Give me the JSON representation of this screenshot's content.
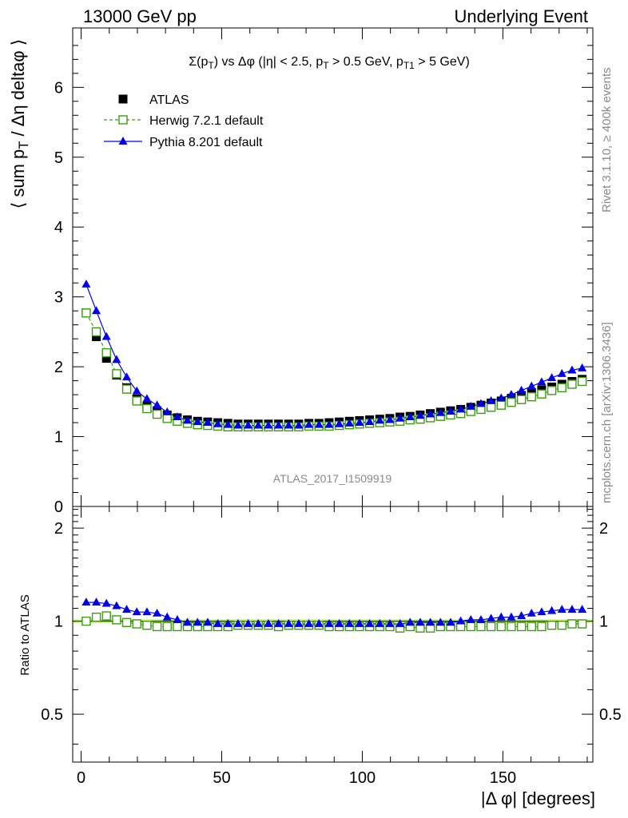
{
  "header": {
    "left": "13000 GeV pp",
    "right": "Underlying Event"
  },
  "watermarks": {
    "rivet": "Rivet 3.1.10, ≥ 400k events",
    "mcplots": "mcplots.cern.ch [arXiv:1306.3436]",
    "analysis": "ATLAS_2017_I1509919"
  },
  "colors": {
    "atlas": "#000000",
    "herwig": "#3c9c14",
    "pythia": "#0000ee",
    "band": "#ccff66"
  },
  "chart_data": [
    {
      "type": "scatter",
      "panel": "main",
      "title": "Σ(p_T) vs Δφ (|η| < 2.5, p_T > 0.5 GeV, p_T1 > 5 GeV)",
      "ylabel": "⟨ sum p_T / Δη deltaφ ⟩",
      "xlabel": "",
      "xlim": [
        -3,
        182
      ],
      "ylim": [
        0,
        6.85
      ],
      "yticks": [
        1,
        2,
        3,
        4,
        5,
        6
      ],
      "ytick_labels": [
        "1",
        "2",
        "3",
        "4",
        "5",
        "6"
      ],
      "y_bottom_label": "0",
      "legend": {
        "position": "top-left",
        "entries": [
          "ATLAS",
          "Herwig 7.2.1 default",
          "Pythia 8.201 default"
        ]
      },
      "x": [
        1.8,
        5.4,
        9.0,
        12.6,
        16.2,
        19.8,
        23.4,
        27.0,
        30.6,
        34.2,
        37.8,
        41.4,
        45.0,
        48.6,
        52.2,
        55.8,
        59.4,
        63.0,
        66.6,
        70.2,
        73.8,
        77.4,
        81.0,
        84.6,
        88.2,
        91.8,
        95.4,
        99.0,
        102.6,
        106.2,
        109.8,
        113.4,
        117.0,
        120.6,
        124.2,
        127.8,
        131.4,
        135.0,
        138.6,
        142.2,
        145.8,
        149.4,
        153.0,
        156.6,
        160.2,
        163.8,
        167.4,
        171.0,
        174.6,
        178.2
      ],
      "series": [
        {
          "name": "ATLAS",
          "marker": "filled-square",
          "values": [
            2.77,
            2.43,
            2.12,
            1.88,
            1.7,
            1.54,
            1.44,
            1.37,
            1.31,
            1.27,
            1.24,
            1.22,
            1.21,
            1.2,
            1.19,
            1.18,
            1.18,
            1.18,
            1.18,
            1.18,
            1.18,
            1.18,
            1.19,
            1.19,
            1.2,
            1.21,
            1.22,
            1.23,
            1.24,
            1.25,
            1.26,
            1.28,
            1.29,
            1.31,
            1.33,
            1.35,
            1.37,
            1.39,
            1.42,
            1.45,
            1.48,
            1.51,
            1.55,
            1.59,
            1.63,
            1.67,
            1.71,
            1.75,
            1.79,
            1.82
          ]
        },
        {
          "name": "Herwig 7.2.1 default",
          "marker": "open-square",
          "values": [
            2.77,
            2.5,
            2.2,
            1.9,
            1.68,
            1.51,
            1.4,
            1.32,
            1.26,
            1.22,
            1.19,
            1.17,
            1.16,
            1.15,
            1.14,
            1.14,
            1.14,
            1.14,
            1.14,
            1.14,
            1.14,
            1.14,
            1.15,
            1.15,
            1.15,
            1.16,
            1.17,
            1.18,
            1.19,
            1.2,
            1.21,
            1.22,
            1.24,
            1.25,
            1.27,
            1.29,
            1.31,
            1.33,
            1.36,
            1.39,
            1.42,
            1.45,
            1.49,
            1.53,
            1.57,
            1.61,
            1.66,
            1.7,
            1.75,
            1.79
          ]
        },
        {
          "name": "Pythia 8.201 default",
          "marker": "filled-triangle",
          "values": [
            3.18,
            2.8,
            2.43,
            2.1,
            1.85,
            1.65,
            1.54,
            1.45,
            1.35,
            1.28,
            1.23,
            1.21,
            1.2,
            1.18,
            1.17,
            1.16,
            1.16,
            1.16,
            1.16,
            1.16,
            1.16,
            1.16,
            1.17,
            1.17,
            1.17,
            1.18,
            1.19,
            1.2,
            1.21,
            1.23,
            1.24,
            1.26,
            1.28,
            1.3,
            1.32,
            1.34,
            1.36,
            1.39,
            1.43,
            1.47,
            1.51,
            1.55,
            1.6,
            1.66,
            1.72,
            1.78,
            1.84,
            1.9,
            1.95,
            1.98
          ]
        }
      ]
    },
    {
      "type": "scatter",
      "panel": "ratio",
      "ylabel": "Ratio to ATLAS",
      "xlabel": "|Δ φ| [degrees]",
      "xlim": [
        -3,
        182
      ],
      "ylim": [
        0.35,
        2.35
      ],
      "ytick_labels": [
        {
          "value": 0.5,
          "text": "0.5"
        },
        {
          "value": 1.0,
          "text": "1"
        },
        {
          "value": 2.0,
          "text": "2"
        }
      ],
      "xticks": [
        0,
        50,
        100,
        150
      ],
      "xtick_labels": [
        "0",
        "50",
        "100",
        "150"
      ],
      "band": {
        "lower": 0.985,
        "upper": 1.015
      },
      "series": [
        {
          "name": "Herwig 7.2.1 default",
          "values": [
            1.0,
            1.03,
            1.04,
            1.01,
            0.99,
            0.98,
            0.97,
            0.96,
            0.96,
            0.96,
            0.96,
            0.96,
            0.96,
            0.96,
            0.96,
            0.97,
            0.97,
            0.97,
            0.97,
            0.96,
            0.97,
            0.97,
            0.97,
            0.97,
            0.96,
            0.96,
            0.96,
            0.96,
            0.96,
            0.96,
            0.96,
            0.95,
            0.96,
            0.95,
            0.95,
            0.96,
            0.96,
            0.96,
            0.96,
            0.96,
            0.96,
            0.96,
            0.96,
            0.96,
            0.96,
            0.96,
            0.97,
            0.97,
            0.98,
            0.98
          ]
        },
        {
          "name": "Pythia 8.201 default",
          "values": [
            1.15,
            1.15,
            1.14,
            1.12,
            1.09,
            1.07,
            1.07,
            1.06,
            1.03,
            1.01,
            0.99,
            0.99,
            0.99,
            0.98,
            0.98,
            0.98,
            0.98,
            0.98,
            0.98,
            0.98,
            0.98,
            0.98,
            0.98,
            0.98,
            0.98,
            0.98,
            0.98,
            0.98,
            0.98,
            0.98,
            0.98,
            0.98,
            0.99,
            0.99,
            0.99,
            0.99,
            0.99,
            1.0,
            1.01,
            1.01,
            1.02,
            1.03,
            1.03,
            1.04,
            1.06,
            1.07,
            1.08,
            1.09,
            1.09,
            1.09
          ]
        }
      ]
    }
  ]
}
